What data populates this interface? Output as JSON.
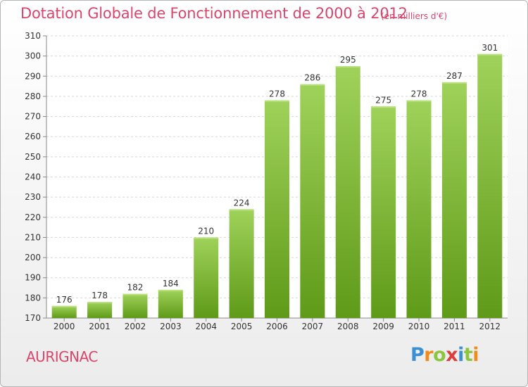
{
  "title": "Dotation Globale de Fonctionnement de 2000 à 2012",
  "unit_note": "(en milliers d'€)",
  "commune": "AURIGNAC",
  "logo": {
    "letters": [
      "P",
      "r",
      "o",
      "x",
      "i",
      "t",
      "i"
    ],
    "colors": [
      "#3b8fd4",
      "#f08c1c",
      "#8cc63f",
      "#e03c3c",
      "#3b8fd4",
      "#8cc63f",
      "#f08c1c"
    ]
  },
  "colors": {
    "bar_top": "#9fd25a",
    "bar_bottom": "#5f9a18",
    "title": "#d9466c",
    "grid": "#d8d8d8"
  },
  "chart_data": {
    "type": "bar",
    "title": "Dotation Globale de Fonctionnement de 2000 à 2012",
    "ylabel": "",
    "xlabel": "",
    "ylim": [
      170,
      310
    ],
    "yticks": [
      170,
      180,
      190,
      200,
      210,
      220,
      230,
      240,
      250,
      260,
      270,
      280,
      290,
      300,
      310
    ],
    "grid": true,
    "categories": [
      "2000",
      "2001",
      "2002",
      "2003",
      "2004",
      "2005",
      "2006",
      "2007",
      "2008",
      "2009",
      "2010",
      "2011",
      "2012"
    ],
    "values": [
      176,
      178,
      182,
      184,
      210,
      224,
      278,
      286,
      295,
      275,
      278,
      287,
      301
    ]
  }
}
